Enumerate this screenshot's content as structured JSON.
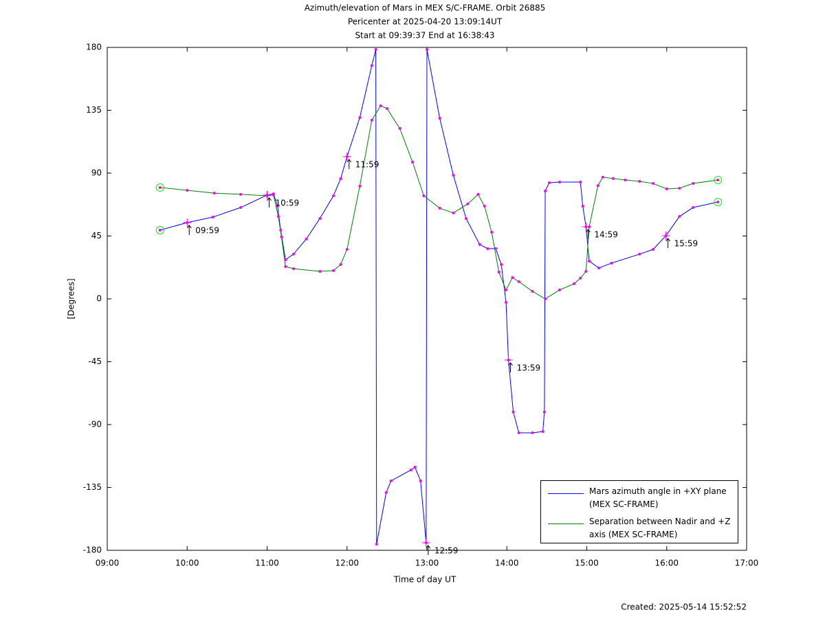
{
  "chart_data": {
    "type": "line",
    "title": "Azimuth/elevation of Mars in MEX S/C-FRAME.  Orbit 26885",
    "subtitle": [
      "Pericenter at 2025-04-20 13:09:14UT",
      "Start at 09:39:37 End at 16:38:43"
    ],
    "x_label": "Time of day UT",
    "y_label": "[Degrees]",
    "footer": "Created: 2025-05-14 15:52:52",
    "xlim": [
      9,
      17
    ],
    "xticks": [
      {
        "value": 9,
        "label": "09:00"
      },
      {
        "value": 10,
        "label": "10:00"
      },
      {
        "value": 11,
        "label": "11:00"
      },
      {
        "value": 12,
        "label": "12:00"
      },
      {
        "value": 13,
        "label": "13:00"
      },
      {
        "value": 14,
        "label": "14:00"
      },
      {
        "value": 15,
        "label": "15:00"
      },
      {
        "value": 16,
        "label": "16:00"
      },
      {
        "value": 17,
        "label": "17:00"
      }
    ],
    "ylim": [
      -180,
      180
    ],
    "yticks": [
      -180,
      -135,
      -90,
      -45,
      0,
      45,
      90,
      135,
      180
    ],
    "grid": false,
    "marker_color": "#ff00ff",
    "series": [
      {
        "name": "Mars azimuth angle in +XY plane (MEX SC-FRAME)",
        "color": "#0000ff",
        "x": [
          9.66,
          10.0,
          10.32,
          10.67,
          11.0,
          11.08,
          11.13,
          11.17,
          11.23,
          11.33,
          11.49,
          11.66,
          11.83,
          11.92,
          12.0,
          12.16,
          12.31,
          12.36,
          12.37,
          12.49,
          12.55,
          12.8,
          12.85,
          12.92,
          12.99,
          13.0,
          13.16,
          13.33,
          13.49,
          13.66,
          13.76,
          13.86,
          13.93,
          13.99,
          14.02,
          14.08,
          14.15,
          14.32,
          14.45,
          14.47,
          14.48,
          14.53,
          14.66,
          14.92,
          14.95,
          14.99,
          15.03,
          15.15,
          15.31,
          15.66,
          15.83,
          15.99,
          16.16,
          16.33,
          16.64
        ],
        "values": [
          49.2,
          54.6,
          58.5,
          65.4,
          74.3,
          75.2,
          66.4,
          49.2,
          28.0,
          32.0,
          42.8,
          57.5,
          73.8,
          86.0,
          101.8,
          129.8,
          167.0,
          178.5,
          -175.6,
          -138.7,
          -130.3,
          -122.5,
          -120.5,
          -130.3,
          -174.6,
          178.5,
          129.3,
          88.5,
          57.5,
          38.9,
          35.9,
          36.0,
          24.6,
          -2.5,
          -43.8,
          -81.0,
          -95.9,
          -95.9,
          -95.0,
          -81.0,
          77.2,
          83.1,
          83.6,
          83.6,
          66.4,
          51.6,
          27.0,
          22.1,
          25.6,
          32.0,
          35.4,
          45.2,
          59.0,
          65.4,
          69.3
        ]
      },
      {
        "name": "Separation between Nadir and +Z axis (MEX SC-FRAME)",
        "color": "#008000",
        "x": [
          9.66,
          10.0,
          10.34,
          10.67,
          11.0,
          11.08,
          11.14,
          11.18,
          11.23,
          11.33,
          11.66,
          11.83,
          11.92,
          12.0,
          12.16,
          12.31,
          12.42,
          12.5,
          12.66,
          12.82,
          12.96,
          13.16,
          13.33,
          13.51,
          13.64,
          13.72,
          13.81,
          13.9,
          13.99,
          14.07,
          14.15,
          14.32,
          14.48,
          14.66,
          14.84,
          14.92,
          14.99,
          15.03,
          15.14,
          15.2,
          15.33,
          15.48,
          15.66,
          15.83,
          16.0,
          16.16,
          16.33,
          16.64
        ],
        "values": [
          79.7,
          77.7,
          75.7,
          74.8,
          73.8,
          74.3,
          59.0,
          44.3,
          23.1,
          21.6,
          19.7,
          20.2,
          24.6,
          35.4,
          80.7,
          127.9,
          138.2,
          136.2,
          122.0,
          97.9,
          73.8,
          64.9,
          61.5,
          67.9,
          74.8,
          66.4,
          47.7,
          19.2,
          6.4,
          15.2,
          12.3,
          5.4,
          0,
          6.4,
          10.8,
          14.8,
          19.7,
          51.6,
          81.1,
          87.1,
          86.1,
          85.1,
          84.1,
          82.6,
          78.7,
          79.2,
          82.6,
          85.1
        ]
      }
    ],
    "annotations": [
      {
        "text": "09:59",
        "x": 10.0,
        "y": 54.6
      },
      {
        "text": "10:59",
        "x": 11.0,
        "y": 74.3
      },
      {
        "text": "11:59",
        "x": 12.0,
        "y": 101.8
      },
      {
        "text": "12:59",
        "x": 12.99,
        "y": -174.6
      },
      {
        "text": "13:59",
        "x": 14.02,
        "y": -43.8
      },
      {
        "text": "14:59",
        "x": 14.99,
        "y": 51.6
      },
      {
        "text": "15:59",
        "x": 15.99,
        "y": 45.2
      }
    ]
  }
}
